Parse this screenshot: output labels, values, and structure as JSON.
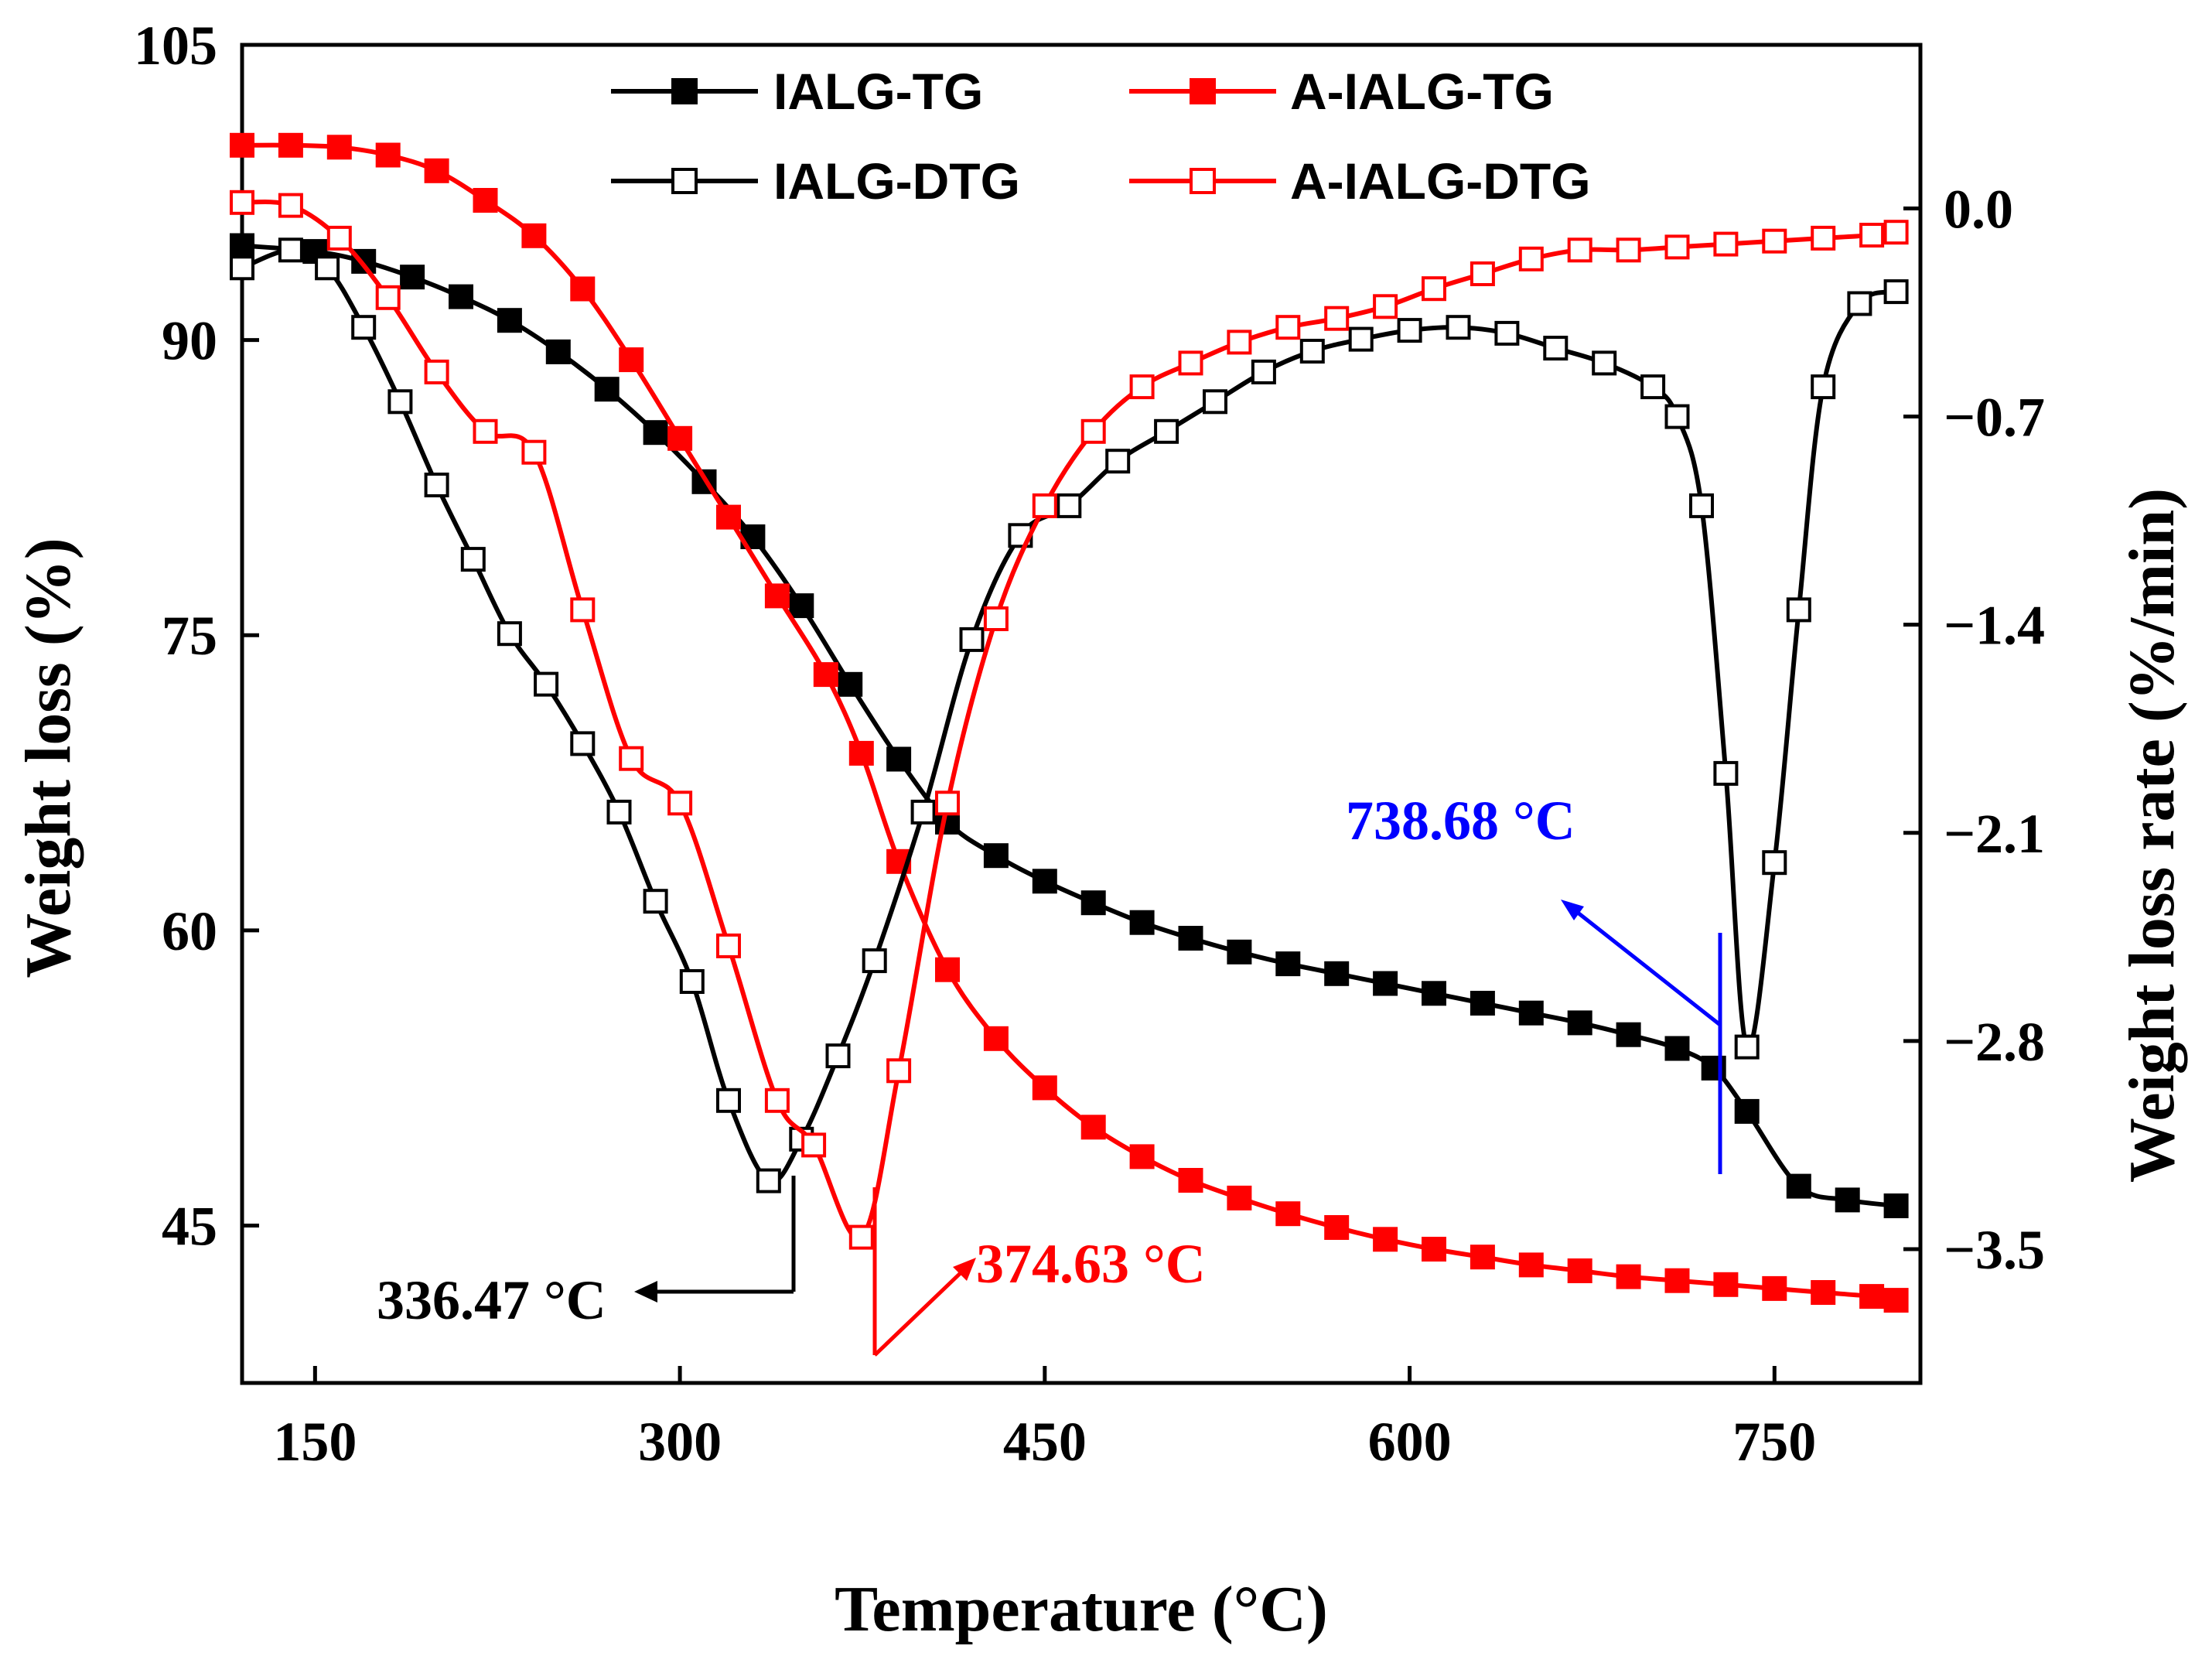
{
  "chart_data": {
    "type": "line",
    "title": "",
    "xlabel": "Temperature (°C)",
    "ylabel_left": "Weight loss (%)",
    "ylabel_right": "Weight loss rate (%/min)",
    "xlim": [
      120,
      810
    ],
    "ylim_left": [
      37,
      105
    ],
    "ylim_right": [
      -3.95,
      0.55
    ],
    "x_ticks": [
      150,
      300,
      450,
      600,
      750
    ],
    "x_tick_labels": [
      "150",
      "300",
      "450",
      "600",
      "750"
    ],
    "y_left_ticks": [
      45,
      60,
      75,
      90,
      105
    ],
    "y_left_tick_labels": [
      "45",
      "60",
      "75",
      "90",
      "105"
    ],
    "y_right_ticks": [
      0.0,
      -0.7,
      -1.4,
      -2.1,
      -2.8,
      -3.5
    ],
    "y_right_tick_labels": [
      "0.0",
      "−0.7",
      "−1.4",
      "−2.1",
      "−2.8",
      "−3.5"
    ],
    "legend": [
      "IALG-TG",
      "A-IALG-TG",
      "IALG-DTG",
      "A-IALG-DTG"
    ],
    "series": [
      {
        "name": "IALG-TG",
        "axis": "left",
        "color": "#000000",
        "marker": "filled-square",
        "x": [
          120,
          150,
          170,
          190,
          210,
          230,
          250,
          270,
          290,
          310,
          330,
          350,
          370,
          390,
          410,
          430,
          450,
          470,
          490,
          510,
          530,
          550,
          570,
          590,
          610,
          630,
          650,
          670,
          690,
          710,
          725,
          738.68,
          760,
          780,
          800
        ],
        "y": [
          94.8,
          94.5,
          94.0,
          93.2,
          92.2,
          91.0,
          89.4,
          87.5,
          85.3,
          82.8,
          80.0,
          76.5,
          72.5,
          68.7,
          65.5,
          63.8,
          62.5,
          61.4,
          60.4,
          59.6,
          58.9,
          58.3,
          57.8,
          57.3,
          56.8,
          56.3,
          55.8,
          55.3,
          54.7,
          54.0,
          53.0,
          50.8,
          47.0,
          46.3,
          46.0
        ]
      },
      {
        "name": "A-IALG-TG",
        "axis": "left",
        "color": "#ff0000",
        "marker": "filled-square",
        "x": [
          120,
          140,
          160,
          180,
          200,
          220,
          240,
          260,
          280,
          300,
          320,
          340,
          360,
          374.63,
          390,
          410,
          430,
          450,
          470,
          490,
          510,
          530,
          550,
          570,
          590,
          610,
          630,
          650,
          670,
          690,
          710,
          730,
          750,
          770,
          790,
          800
        ],
        "y": [
          99.9,
          99.9,
          99.8,
          99.4,
          98.6,
          97.1,
          95.3,
          92.6,
          89.0,
          85.0,
          81.0,
          77.0,
          73.0,
          69.0,
          63.5,
          58.0,
          54.5,
          52.0,
          50.0,
          48.5,
          47.3,
          46.4,
          45.6,
          44.9,
          44.3,
          43.8,
          43.4,
          43.0,
          42.7,
          42.4,
          42.2,
          42.0,
          41.8,
          41.6,
          41.4,
          41.2
        ]
      },
      {
        "name": "IALG-DTG",
        "axis": "right",
        "color": "#000000",
        "marker": "open-square",
        "x": [
          120,
          140,
          155,
          170,
          185,
          200,
          215,
          230,
          245,
          260,
          275,
          290,
          305,
          320,
          336.47,
          350,
          365,
          380,
          400,
          420,
          440,
          460,
          480,
          500,
          520,
          540,
          560,
          580,
          600,
          620,
          640,
          660,
          680,
          700,
          710,
          720,
          730,
          738.68,
          750,
          760,
          770,
          785,
          800
        ],
        "y": [
          -0.2,
          -0.14,
          -0.2,
          -0.4,
          -0.65,
          -0.93,
          -1.18,
          -1.43,
          -1.6,
          -1.8,
          -2.03,
          -2.33,
          -2.6,
          -3.0,
          -3.27,
          -3.13,
          -2.85,
          -2.53,
          -2.03,
          -1.45,
          -1.1,
          -1.0,
          -0.85,
          -0.75,
          -0.65,
          -0.55,
          -0.48,
          -0.44,
          -0.41,
          -0.4,
          -0.42,
          -0.47,
          -0.52,
          -0.6,
          -0.7,
          -1.0,
          -1.9,
          -2.82,
          -2.2,
          -1.35,
          -0.6,
          -0.32,
          -0.28
        ]
      },
      {
        "name": "A-IALG-DTG",
        "axis": "right",
        "color": "#ff0000",
        "marker": "open-square",
        "x": [
          120,
          140,
          160,
          180,
          200,
          220,
          240,
          260,
          280,
          300,
          320,
          340,
          355,
          374.63,
          390,
          410,
          430,
          450,
          470,
          490,
          510,
          530,
          550,
          570,
          590,
          610,
          630,
          650,
          670,
          690,
          710,
          730,
          750,
          770,
          790,
          800
        ],
        "y": [
          0.02,
          0.01,
          -0.1,
          -0.3,
          -0.55,
          -0.75,
          -0.82,
          -1.35,
          -1.85,
          -2.0,
          -2.48,
          -3.0,
          -3.15,
          -3.46,
          -2.9,
          -2.0,
          -1.38,
          -1.0,
          -0.75,
          -0.6,
          -0.52,
          -0.45,
          -0.4,
          -0.37,
          -0.33,
          -0.27,
          -0.22,
          -0.17,
          -0.14,
          -0.14,
          -0.13,
          -0.12,
          -0.11,
          -0.1,
          -0.09,
          -0.08
        ]
      }
    ],
    "annotations": [
      {
        "text": "336.47  °C",
        "color": "#000000",
        "x": 336.47,
        "series": "IALG-DTG"
      },
      {
        "text": "374.63  °C",
        "color": "#ff0000",
        "x": 374.63,
        "series": "A-IALG-DTG"
      },
      {
        "text": "738.68  °C",
        "color": "#0000ff",
        "x": 738.68,
        "series": "IALG-DTG"
      }
    ]
  }
}
